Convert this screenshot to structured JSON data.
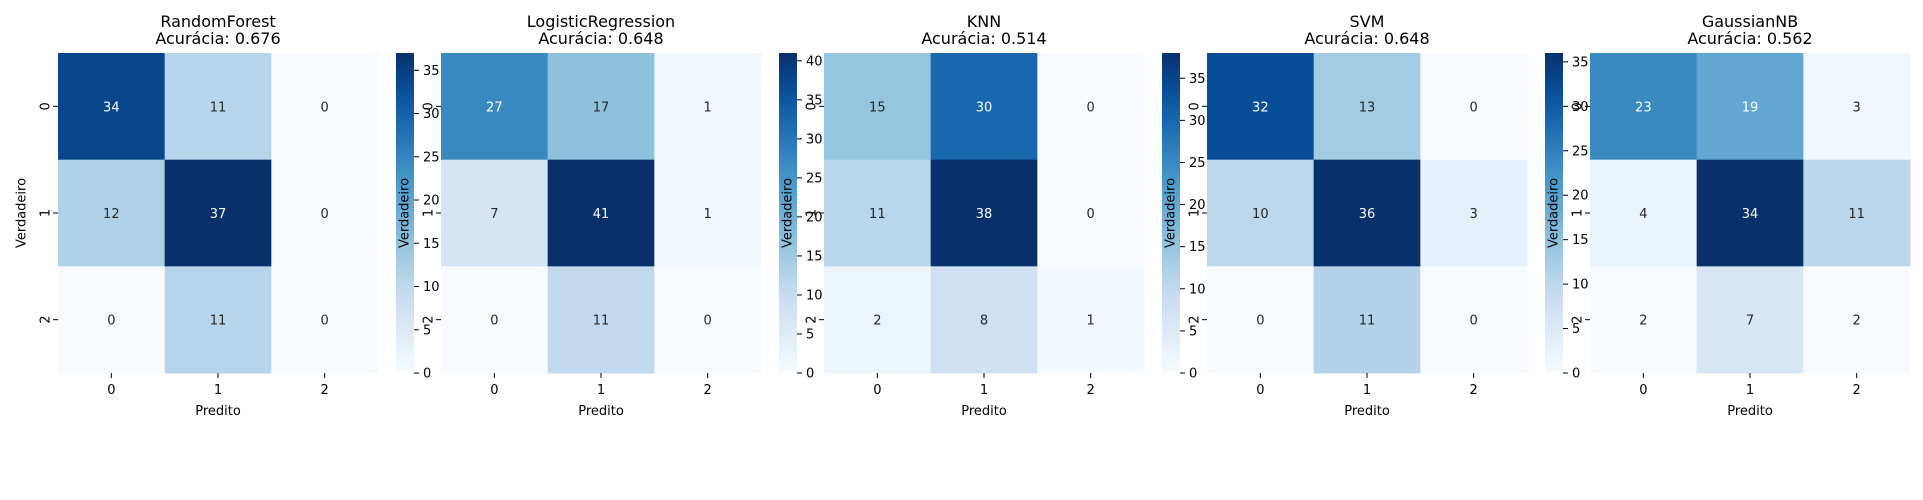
{
  "chart_data": [
    {
      "type": "heatmap",
      "title": "RandomForest",
      "subtitle": "Acurácia: 0.676",
      "xlabel": "Predito",
      "ylabel": "Verdadeiro",
      "x_categories": [
        "0",
        "1",
        "2"
      ],
      "y_categories": [
        "0",
        "1",
        "2"
      ],
      "matrix": [
        [
          34,
          11,
          0
        ],
        [
          12,
          37,
          0
        ],
        [
          0,
          11,
          0
        ]
      ],
      "colorbar_ticks": [
        0,
        5,
        10,
        15,
        20,
        25,
        30,
        35
      ],
      "colorbar_range": [
        0,
        37
      ]
    },
    {
      "type": "heatmap",
      "title": "LogisticRegression",
      "subtitle": "Acurácia: 0.648",
      "xlabel": "Predito",
      "ylabel": "Verdadeiro",
      "x_categories": [
        "0",
        "1",
        "2"
      ],
      "y_categories": [
        "0",
        "1",
        "2"
      ],
      "matrix": [
        [
          27,
          17,
          1
        ],
        [
          7,
          41,
          1
        ],
        [
          0,
          11,
          0
        ]
      ],
      "colorbar_ticks": [
        0,
        5,
        10,
        15,
        20,
        25,
        30,
        35,
        40
      ],
      "colorbar_range": [
        0,
        41
      ]
    },
    {
      "type": "heatmap",
      "title": "KNN",
      "subtitle": "Acurácia: 0.514",
      "xlabel": "Predito",
      "ylabel": "Verdadeiro",
      "x_categories": [
        "0",
        "1",
        "2"
      ],
      "y_categories": [
        "0",
        "1",
        "2"
      ],
      "matrix": [
        [
          15,
          30,
          0
        ],
        [
          11,
          38,
          0
        ],
        [
          2,
          8,
          1
        ]
      ],
      "colorbar_ticks": [
        0,
        5,
        10,
        15,
        20,
        25,
        30,
        35
      ],
      "colorbar_range": [
        0,
        38
      ]
    },
    {
      "type": "heatmap",
      "title": "SVM",
      "subtitle": "Acurácia: 0.648",
      "xlabel": "Predito",
      "ylabel": "Verdadeiro",
      "x_categories": [
        "0",
        "1",
        "2"
      ],
      "y_categories": [
        "0",
        "1",
        "2"
      ],
      "matrix": [
        [
          32,
          13,
          0
        ],
        [
          10,
          36,
          3
        ],
        [
          0,
          11,
          0
        ]
      ],
      "colorbar_ticks": [
        0,
        5,
        10,
        15,
        20,
        25,
        30,
        35
      ],
      "colorbar_range": [
        0,
        36
      ]
    },
    {
      "type": "heatmap",
      "title": "GaussianNB",
      "subtitle": "Acurácia: 0.562",
      "xlabel": "Predito",
      "ylabel": "Verdadeiro",
      "x_categories": [
        "0",
        "1",
        "2"
      ],
      "y_categories": [
        "0",
        "1",
        "2"
      ],
      "matrix": [
        [
          23,
          19,
          3
        ],
        [
          4,
          34,
          11
        ],
        [
          2,
          7,
          2
        ]
      ],
      "colorbar_ticks": [
        5,
        10,
        15,
        20,
        25,
        30
      ],
      "colorbar_range": [
        2,
        34
      ]
    }
  ],
  "colormap": "Blues"
}
